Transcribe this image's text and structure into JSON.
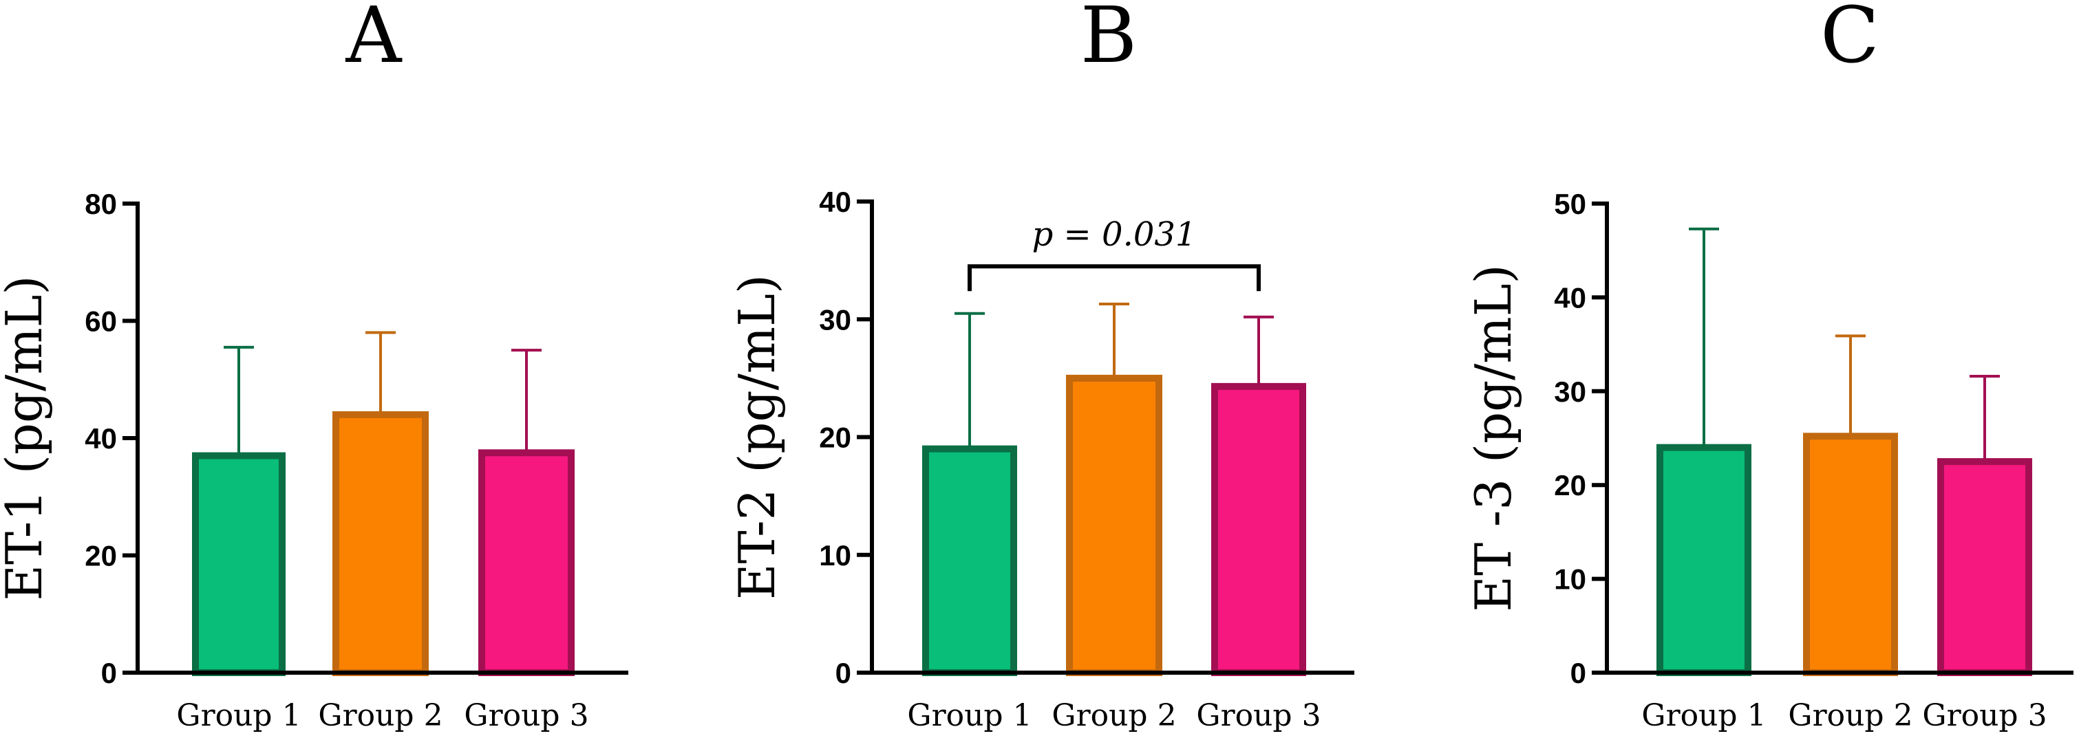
{
  "chart_data": [
    {
      "type": "bar",
      "panel": "A",
      "ylabel": "ET-1 (pg/mL)",
      "ylim": [
        0,
        80
      ],
      "yticks": [
        0,
        20,
        40,
        60,
        80
      ],
      "categories": [
        "Group 1",
        "Group 2",
        "Group 3"
      ],
      "values": [
        37,
        44,
        37.5
      ],
      "error_upper": [
        55.5,
        58,
        55
      ],
      "annotation": null
    },
    {
      "type": "bar",
      "panel": "B",
      "ylabel": "ET-2 (pg/mL)",
      "ylim": [
        0,
        40
      ],
      "yticks": [
        0,
        10,
        20,
        30,
        40
      ],
      "categories": [
        "Group 1",
        "Group 2",
        "Group 3"
      ],
      "values": [
        19,
        25,
        24.3
      ],
      "error_upper": [
        30.5,
        31.3,
        30.2
      ],
      "annotation": {
        "text": "p = 0.031",
        "from": 0,
        "to": 2,
        "y": 34.5
      }
    },
    {
      "type": "bar",
      "panel": "C",
      "ylabel": "ET -3 (pg/mL)",
      "ylim": [
        0,
        50
      ],
      "yticks": [
        0,
        10,
        20,
        30,
        40,
        50
      ],
      "categories": [
        "Group 1",
        "Group 2",
        "Group 3"
      ],
      "values": [
        24,
        25.2,
        22.5
      ],
      "error_upper": [
        47.3,
        35.9,
        31.6
      ],
      "annotation": null
    }
  ],
  "colors": {
    "fills": [
      "#08be78",
      "#fb8100",
      "#f6187f"
    ],
    "strokes": [
      "#0b6e45",
      "#c2690f",
      "#a30f52"
    ]
  }
}
